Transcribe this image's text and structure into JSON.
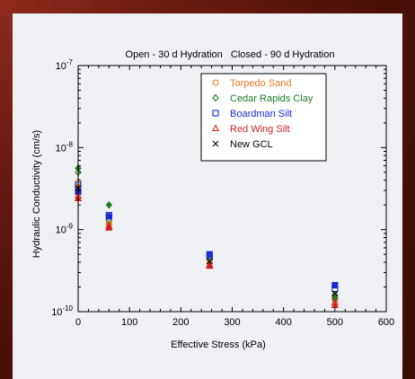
{
  "chart_data": {
    "type": "scatter",
    "title": "Open - 30 d Hydration   Closed - 90 d Hydration",
    "xlabel": "Effective Stress (kPa)",
    "ylabel": "Hydraulic Conductivity (cm/s)",
    "xlim": [
      0,
      600
    ],
    "ylim": [
      1e-10,
      1e-07
    ],
    "y_scale": "log",
    "x_ticks": [
      0,
      100,
      200,
      300,
      400,
      500,
      600
    ],
    "y_ticks": [
      {
        "value": 1e-10,
        "base": "10",
        "exp": "-10"
      },
      {
        "value": 1e-09,
        "base": "10",
        "exp": "-9"
      },
      {
        "value": 1e-08,
        "base": "10",
        "exp": "-8"
      },
      {
        "value": 1e-07,
        "base": "10",
        "exp": "-7"
      }
    ],
    "legend_position": "top-right",
    "series": [
      {
        "name": "Torpedo Sand",
        "color": "#f07820",
        "marker": "circle",
        "open": [
          [
            0,
            3.8e-09
          ],
          [
            60,
            1.2e-09
          ],
          [
            256,
            4.3e-10
          ],
          [
            500,
            1.5e-10
          ]
        ],
        "closed": [
          [
            0,
            3.3e-09
          ],
          [
            60,
            1.15e-09
          ],
          [
            256,
            3.9e-10
          ],
          [
            500,
            1.4e-10
          ]
        ]
      },
      {
        "name": "Cedar Rapids Clay",
        "color": "#1e7a2a",
        "marker": "diamond",
        "open": [
          [
            0,
            5e-09
          ],
          [
            60,
            1.3e-09
          ],
          [
            256,
            4.4e-10
          ],
          [
            500,
            1.6e-10
          ]
        ],
        "closed": [
          [
            0,
            5.6e-09
          ],
          [
            60,
            2e-09
          ],
          [
            256,
            4.8e-10
          ],
          [
            500,
            1.45e-10
          ]
        ]
      },
      {
        "name": "Boardman Silt",
        "color": "#1a2ad0",
        "marker": "square",
        "open": [
          [
            0,
            3.5e-09
          ],
          [
            60,
            1.5e-09
          ],
          [
            256,
            4.7e-10
          ],
          [
            500,
            1.9e-10
          ]
        ],
        "closed": [
          [
            0,
            2.9e-09
          ],
          [
            60,
            1.45e-09
          ],
          [
            256,
            5e-10
          ],
          [
            500,
            2.1e-10
          ]
        ]
      },
      {
        "name": "Red Wing Silt",
        "color": "#d42020",
        "marker": "triangle",
        "open": [
          [
            0,
            2.6e-09
          ],
          [
            60,
            1.1e-09
          ],
          [
            256,
            3.7e-10
          ],
          [
            500,
            1.3e-10
          ]
        ],
        "closed": [
          [
            0,
            2.4e-09
          ],
          [
            60,
            1.05e-09
          ],
          [
            256,
            3.6e-10
          ],
          [
            500,
            1.2e-10
          ]
        ]
      },
      {
        "name": "New GCL",
        "color": "#000000",
        "marker": "x",
        "open": [
          [
            0,
            3.2e-09
          ],
          [
            256,
            4.1e-10
          ],
          [
            500,
            1.65e-10
          ]
        ],
        "closed": []
      }
    ]
  }
}
